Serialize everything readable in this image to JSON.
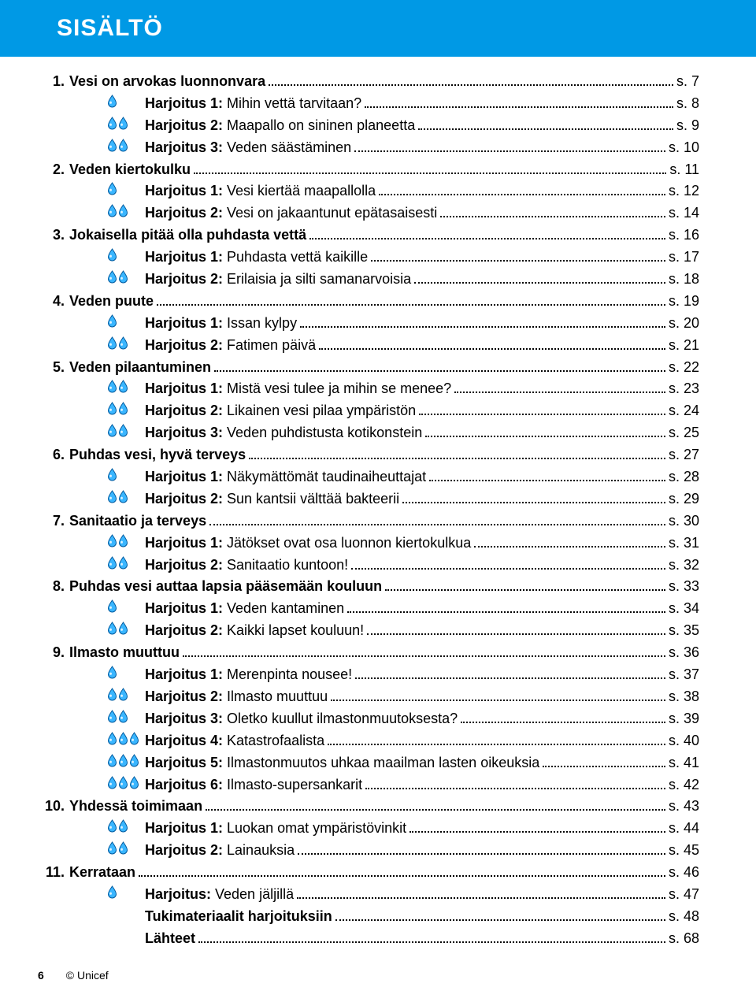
{
  "colors": {
    "header_bg": "#0099e5",
    "header_text": "#ffffff",
    "text": "#000000",
    "drop_fill": "#3ab6ff",
    "drop_stroke": "#005a9e",
    "drop_highlight": "#ffffff"
  },
  "header": {
    "title": "SISÄLTÖ"
  },
  "page_prefix": "s.",
  "exercise_prefix": "Harjoitus",
  "chapters": [
    {
      "num": "1.",
      "title": "Vesi on arvokas luonnonvara",
      "page": "7",
      "exercises": [
        {
          "n": "1",
          "drops": 1,
          "text": "Mihin vettä tarvitaan?",
          "page": "8"
        },
        {
          "n": "2",
          "drops": 2,
          "text": "Maapallo on sininen planeetta",
          "page": "9"
        },
        {
          "n": "3",
          "drops": 2,
          "text": "Veden säästäminen",
          "page": "10"
        }
      ]
    },
    {
      "num": "2.",
      "title": "Veden kiertokulku",
      "page": "11",
      "exercises": [
        {
          "n": "1",
          "drops": 1,
          "text": "Vesi kiertää maapallolla",
          "page": "12"
        },
        {
          "n": "2",
          "drops": 2,
          "text": "Vesi on jakaantunut epätasaisesti",
          "page": "14"
        }
      ]
    },
    {
      "num": "3.",
      "title": "Jokaisella pitää olla puhdasta vettä",
      "page": "16",
      "exercises": [
        {
          "n": "1",
          "drops": 1,
          "text": "Puhdasta vettä kaikille",
          "page": "17"
        },
        {
          "n": "2",
          "drops": 2,
          "text": "Erilaisia ja silti samanarvoisia",
          "page": "18"
        }
      ]
    },
    {
      "num": "4.",
      "title": "Veden puute",
      "page": "19",
      "exercises": [
        {
          "n": "1",
          "drops": 1,
          "text": "Issan kylpy",
          "page": "20"
        },
        {
          "n": "2",
          "drops": 2,
          "text": "Fatimen päivä",
          "page": "21"
        }
      ]
    },
    {
      "num": "5.",
      "title": "Veden pilaantuminen",
      "page": "22",
      "exercises": [
        {
          "n": "1",
          "drops": 2,
          "text": "Mistä vesi tulee ja mihin se menee?",
          "page": "23"
        },
        {
          "n": "2",
          "drops": 2,
          "text": "Likainen vesi pilaa ympäristön",
          "page": "24"
        },
        {
          "n": "3",
          "drops": 2,
          "text": "Veden puhdistusta kotikonstein",
          "page": "25"
        }
      ]
    },
    {
      "num": "6.",
      "title": "Puhdas vesi, hyvä terveys",
      "page": "27",
      "exercises": [
        {
          "n": "1",
          "drops": 1,
          "text": "Näkymättömät taudinaiheuttajat",
          "page": "28"
        },
        {
          "n": "2",
          "drops": 2,
          "text": "Sun kantsii välttää bakteerii",
          "page": "29"
        }
      ]
    },
    {
      "num": "7.",
      "title": "Sanitaatio ja terveys",
      "page": "30",
      "exercises": [
        {
          "n": "1",
          "drops": 2,
          "text": "Jätökset ovat osa luonnon kiertokulkua",
          "page": "31"
        },
        {
          "n": "2",
          "drops": 2,
          "text": "Sanitaatio kuntoon!",
          "page": "32"
        }
      ]
    },
    {
      "num": "8.",
      "title": "Puhdas vesi auttaa lapsia pääsemään kouluun",
      "page": "33",
      "exercises": [
        {
          "n": "1",
          "drops": 1,
          "text": "Veden kantaminen",
          "page": "34"
        },
        {
          "n": "2",
          "drops": 2,
          "text": "Kaikki lapset kouluun!",
          "page": "35"
        }
      ]
    },
    {
      "num": "9.",
      "title": "Ilmasto muuttuu",
      "page": "36",
      "exercises": [
        {
          "n": "1",
          "drops": 1,
          "text": "Merenpinta nousee!",
          "page": "37"
        },
        {
          "n": "2",
          "drops": 2,
          "text": "Ilmasto muuttuu",
          "page": "38"
        },
        {
          "n": "3",
          "drops": 2,
          "text": "Oletko kuullut ilmastonmuutoksesta?",
          "page": "39"
        },
        {
          "n": "4",
          "drops": 3,
          "text": "Katastrofaalista",
          "page": "40"
        },
        {
          "n": "5",
          "drops": 3,
          "text": "Ilmastonmuutos uhkaa maailman lasten oikeuksia",
          "page": "41"
        },
        {
          "n": "6",
          "drops": 3,
          "text": "Ilmasto-supersankarit",
          "page": "42"
        }
      ]
    },
    {
      "num": "10.",
      "title": "Yhdessä toimimaan",
      "page": "43",
      "exercises": [
        {
          "n": "1",
          "drops": 2,
          "text": "Luokan omat ympäristövinkit",
          "page": "44"
        },
        {
          "n": "2",
          "drops": 2,
          "text": "Lainauksia",
          "page": "45"
        }
      ]
    },
    {
      "num": "11.",
      "title": "Kerrataan",
      "page": "46",
      "exercises": [
        {
          "n": "",
          "drops": 1,
          "text": "Veden jäljillä",
          "page": "47"
        }
      ]
    }
  ],
  "appendix": [
    {
      "title": "Tukimateriaalit harjoituksiin",
      "page": "48"
    },
    {
      "title": "Lähteet",
      "page": "68"
    }
  ],
  "footer": {
    "page_num": "6",
    "copyright": "© Unicef"
  }
}
